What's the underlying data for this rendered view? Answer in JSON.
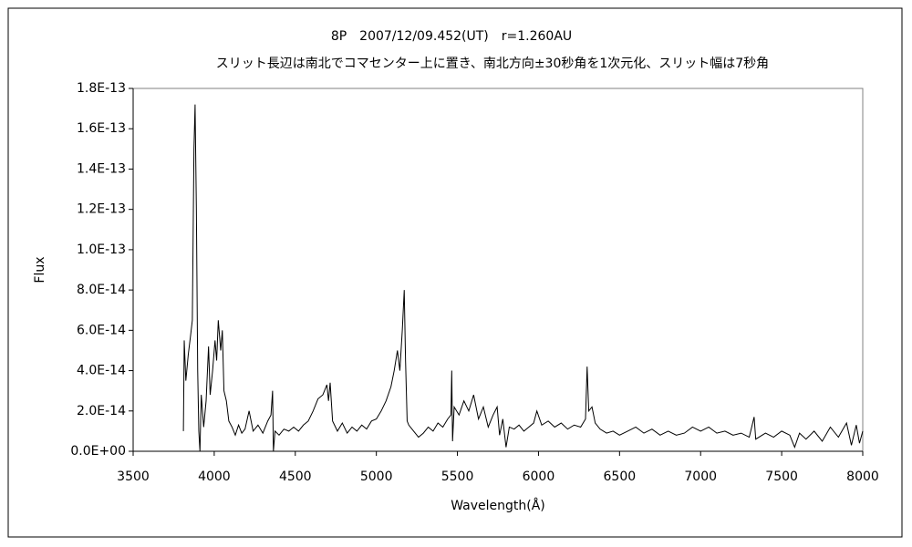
{
  "chart_data": {
    "type": "line",
    "title": "8P　2007/12/09.452(UT)　r=1.260AU",
    "subtitle": "スリット長辺は南北でコマセンター上に置き、南北方向±30秒角を1次元化、スリット幅は7秒角",
    "xlabel": "Wavelength(Å)",
    "ylabel": "Flux",
    "color": "#000000",
    "grid": false,
    "xlim": [
      3500,
      8000
    ],
    "xticks": [
      3500,
      4000,
      4500,
      5000,
      5500,
      6000,
      6500,
      7000,
      7500,
      8000
    ],
    "ylim": [
      0,
      1.8e-13
    ],
    "yticks": [
      {
        "value": 0,
        "label": "0.0E+00"
      },
      {
        "value": 2e-14,
        "label": "2.0E-14"
      },
      {
        "value": 4e-14,
        "label": "4.0E-14"
      },
      {
        "value": 6e-14,
        "label": "6.0E-14"
      },
      {
        "value": 8e-14,
        "label": "8.0E-14"
      },
      {
        "value": 1e-13,
        "label": "1.0E-13"
      },
      {
        "value": 1.2e-13,
        "label": "1.2E-13"
      },
      {
        "value": 1.4e-13,
        "label": "1.4E-13"
      },
      {
        "value": 1.6e-13,
        "label": "1.6E-13"
      },
      {
        "value": 1.8e-13,
        "label": "1.8E-13"
      }
    ],
    "x": [
      3810,
      3815,
      3825,
      3840,
      3855,
      3865,
      3875,
      3882,
      3890,
      3898,
      3905,
      3912,
      3920,
      3935,
      3950,
      3965,
      3975,
      3990,
      4005,
      4015,
      4025,
      4040,
      4050,
      4060,
      4075,
      4090,
      4110,
      4130,
      4150,
      4170,
      4190,
      4215,
      4240,
      4270,
      4300,
      4330,
      4350,
      4360,
      4365,
      4375,
      4400,
      4430,
      4460,
      4490,
      4520,
      4550,
      4580,
      4610,
      4640,
      4670,
      4695,
      4705,
      4715,
      4730,
      4760,
      4790,
      4820,
      4850,
      4880,
      4910,
      4940,
      4970,
      5000,
      5030,
      5060,
      5090,
      5110,
      5130,
      5145,
      5160,
      5172,
      5180,
      5190,
      5200,
      5230,
      5260,
      5290,
      5320,
      5350,
      5380,
      5410,
      5440,
      5460,
      5465,
      5470,
      5480,
      5510,
      5540,
      5570,
      5600,
      5630,
      5660,
      5690,
      5720,
      5745,
      5760,
      5780,
      5800,
      5820,
      5850,
      5880,
      5910,
      5940,
      5970,
      5990,
      6020,
      6060,
      6100,
      6140,
      6180,
      6220,
      6260,
      6290,
      6300,
      6310,
      6330,
      6350,
      6380,
      6420,
      6460,
      6500,
      6550,
      6600,
      6650,
      6700,
      6750,
      6800,
      6850,
      6900,
      6950,
      7000,
      7050,
      7100,
      7150,
      7200,
      7250,
      7300,
      7330,
      7340,
      7400,
      7450,
      7500,
      7550,
      7580,
      7610,
      7650,
      7700,
      7750,
      7800,
      7850,
      7900,
      7930,
      7960,
      7980,
      8000
    ],
    "values": [
      1e-14,
      5.5e-14,
      3.5e-14,
      4.8e-14,
      5.8e-14,
      6.5e-14,
      1.5e-13,
      1.72e-13,
      1.2e-13,
      4e-14,
      1e-14,
      0,
      2.8e-14,
      1.2e-14,
      2.5e-14,
      5.2e-14,
      2.8e-14,
      4e-14,
      5.5e-14,
      4.5e-14,
      6.5e-14,
      5e-14,
      6e-14,
      3e-14,
      2.5e-14,
      1.5e-14,
      1.2e-14,
      8e-15,
      1.3e-14,
      9e-15,
      1.1e-14,
      2e-14,
      1e-14,
      1.3e-14,
      9e-15,
      1.5e-14,
      1.8e-14,
      3e-14,
      0,
      1e-14,
      8e-15,
      1.1e-14,
      1e-14,
      1.2e-14,
      1e-14,
      1.3e-14,
      1.5e-14,
      2e-14,
      2.6e-14,
      2.8e-14,
      3.3e-14,
      2.5e-14,
      3.4e-14,
      1.5e-14,
      1e-14,
      1.4e-14,
      9e-15,
      1.2e-14,
      1e-14,
      1.3e-14,
      1.1e-14,
      1.5e-14,
      1.6e-14,
      2e-14,
      2.5e-14,
      3.2e-14,
      4e-14,
      5e-14,
      4e-14,
      6e-14,
      8e-14,
      4.5e-14,
      1.5e-14,
      1.3e-14,
      1e-14,
      7e-15,
      9e-15,
      1.2e-14,
      1e-14,
      1.4e-14,
      1.2e-14,
      1.6e-14,
      1.8e-14,
      4e-14,
      5e-15,
      2.2e-14,
      1.8e-14,
      2.5e-14,
      2e-14,
      2.8e-14,
      1.6e-14,
      2.2e-14,
      1.2e-14,
      1.8e-14,
      2.2e-14,
      8e-15,
      1.6e-14,
      2e-15,
      1.2e-14,
      1.1e-14,
      1.3e-14,
      1e-14,
      1.2e-14,
      1.4e-14,
      2e-14,
      1.3e-14,
      1.5e-14,
      1.2e-14,
      1.4e-14,
      1.1e-14,
      1.3e-14,
      1.2e-14,
      1.6e-14,
      4.2e-14,
      2e-14,
      2.2e-14,
      1.4e-14,
      1.1e-14,
      9e-15,
      1e-14,
      8e-15,
      1e-14,
      1.2e-14,
      9e-15,
      1.1e-14,
      8e-15,
      1e-14,
      8e-15,
      9e-15,
      1.2e-14,
      1e-14,
      1.2e-14,
      9e-15,
      1e-14,
      8e-15,
      9e-15,
      7e-15,
      1.7e-14,
      6e-15,
      9e-15,
      7e-15,
      1e-14,
      8e-15,
      2e-15,
      9e-15,
      6e-15,
      1e-14,
      5e-15,
      1.2e-14,
      7e-15,
      1.4e-14,
      3e-15,
      1.3e-14,
      4e-15,
      1e-14
    ]
  }
}
